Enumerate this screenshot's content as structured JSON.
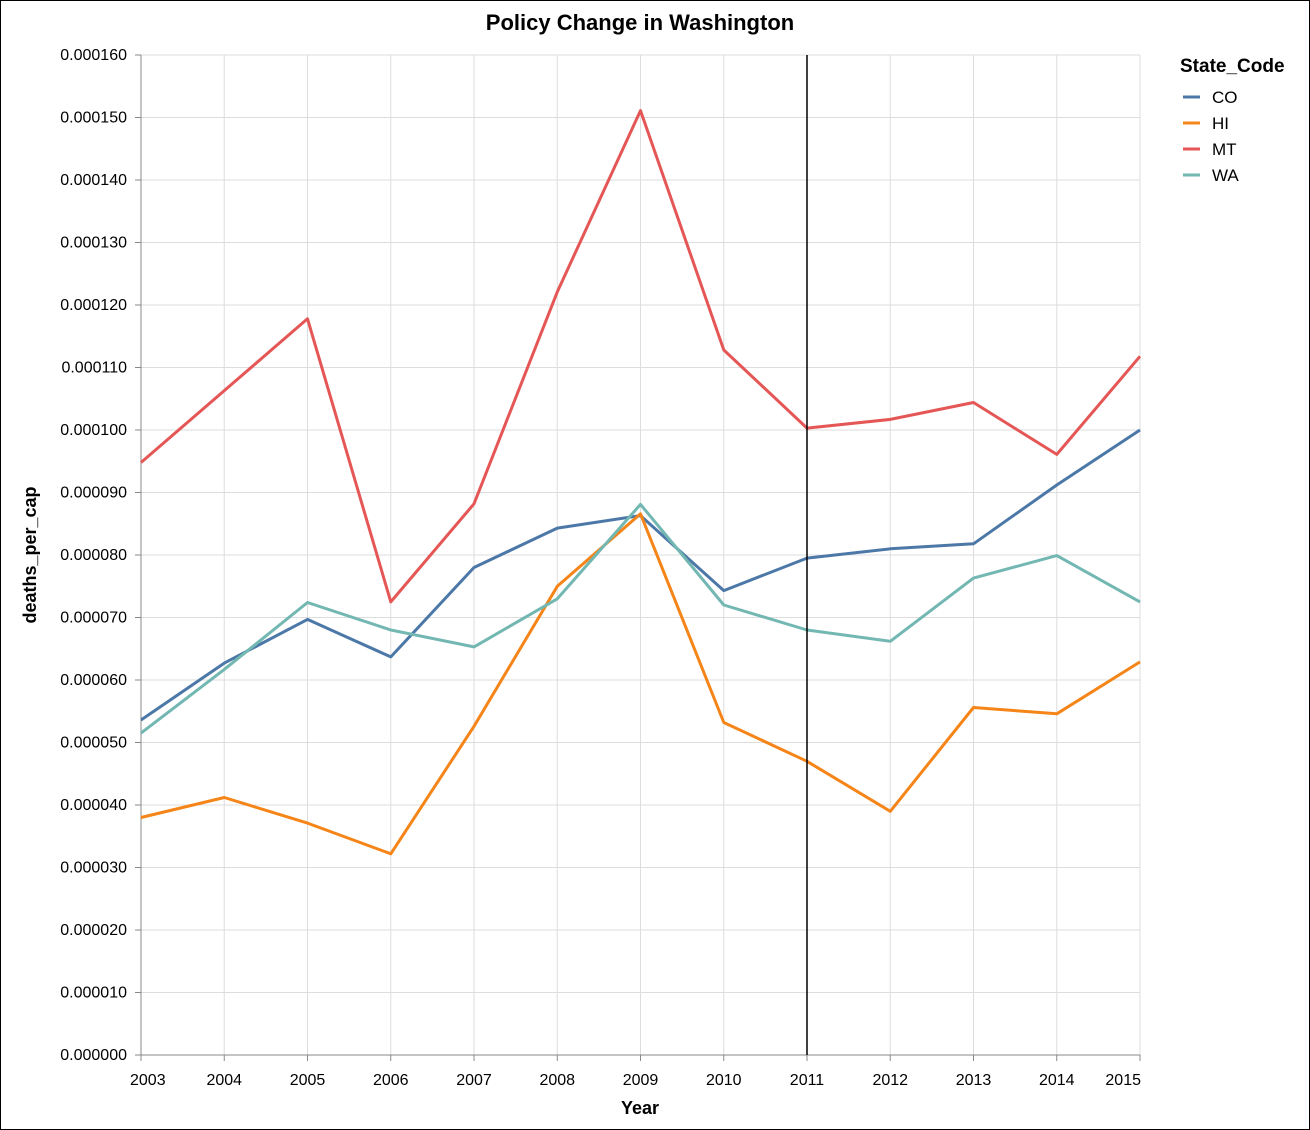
{
  "chart_data": {
    "type": "line",
    "title": "Policy Change in Washington",
    "xlabel": "Year",
    "ylabel": "deaths_per_cap",
    "x": [
      2003,
      2004,
      2005,
      2006,
      2007,
      2008,
      2009,
      2010,
      2011,
      2012,
      2013,
      2014,
      2015
    ],
    "xlim": [
      2003,
      2015
    ],
    "ylim": [
      0,
      0.00016
    ],
    "yticks": [
      0,
      1e-05,
      2e-05,
      3e-05,
      4e-05,
      5e-05,
      6e-05,
      7e-05,
      8e-05,
      9e-05,
      0.0001,
      0.00011,
      0.00012,
      0.00013,
      0.00014,
      0.00015,
      0.00016
    ],
    "ytick_labels": [
      "0.000000",
      "0.000010",
      "0.000020",
      "0.000030",
      "0.000040",
      "0.000050",
      "0.000060",
      "0.000070",
      "0.000080",
      "0.000090",
      "0.000100",
      "0.000110",
      "0.000120",
      "0.000130",
      "0.000140",
      "0.000150",
      "0.000160"
    ],
    "grid": true,
    "legend_title": "State_Code",
    "legend_position": "right",
    "reference_line_x": 2011,
    "reference_line_color": "#000000",
    "series": [
      {
        "name": "CO",
        "color": "#4c78a8",
        "values": [
          5.36e-05,
          6.27e-05,
          6.97e-05,
          6.37e-05,
          7.8e-05,
          8.43e-05,
          8.63e-05,
          7.43e-05,
          7.95e-05,
          8.1e-05,
          8.18e-05,
          9.12e-05,
          0.0001
        ]
      },
      {
        "name": "HI",
        "color": "#f58518",
        "values": [
          3.8e-05,
          4.12e-05,
          3.71e-05,
          3.22e-05,
          5.26e-05,
          7.5e-05,
          8.66e-05,
          5.32e-05,
          4.7e-05,
          3.9e-05,
          5.56e-05,
          5.46e-05,
          6.29e-05
        ]
      },
      {
        "name": "MT",
        "color": "#e45756",
        "values": [
          9.48e-05,
          0.0001063,
          0.0001178,
          7.25e-05,
          8.82e-05,
          0.0001221,
          0.0001511,
          0.0001128,
          0.0001003,
          0.0001017,
          0.0001044,
          9.61e-05,
          0.0001118
        ]
      },
      {
        "name": "WA",
        "color": "#72b7b2",
        "values": [
          5.15e-05,
          6.17e-05,
          7.24e-05,
          6.8e-05,
          6.53e-05,
          7.3e-05,
          8.81e-05,
          7.2e-05,
          6.8e-05,
          6.62e-05,
          7.63e-05,
          7.99e-05,
          7.25e-05
        ]
      }
    ]
  }
}
